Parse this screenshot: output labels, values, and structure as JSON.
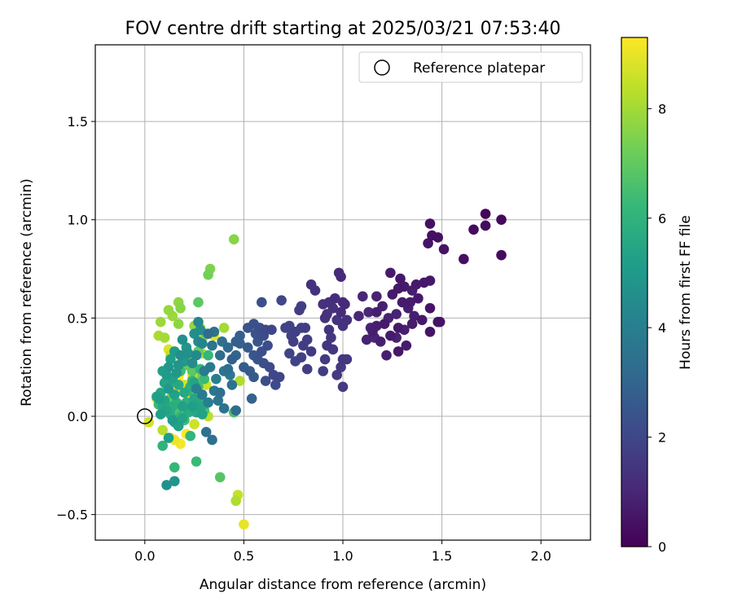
{
  "chart_data": {
    "type": "scatter",
    "title": "FOV centre drift starting at 2025/03/21 07:53:40",
    "xlabel": "Angular distance from reference (arcmin)",
    "ylabel": "Rotation from reference (arcmin)",
    "xlim": [
      -0.25,
      2.25
    ],
    "ylim": [
      -0.63,
      1.89
    ],
    "xticks": [
      0.0,
      0.5,
      1.0,
      1.5,
      2.0
    ],
    "xtick_labels": [
      "0.0",
      "0.5",
      "1.0",
      "1.5",
      "2.0"
    ],
    "yticks": [
      -0.5,
      0.0,
      0.5,
      1.0,
      1.5
    ],
    "ytick_labels": [
      "−0.5",
      "0.0",
      "0.5",
      "1.0",
      "1.5"
    ],
    "grid": true,
    "legend": {
      "placement": "top-right",
      "entries": [
        "Reference platepar"
      ]
    },
    "reference_point": {
      "x": 0.0,
      "y": 0.0,
      "name": "Reference platepar"
    },
    "colorbar": {
      "label": "Hours from first FF file",
      "range": [
        0,
        9.3
      ],
      "ticks": [
        0,
        2,
        4,
        6,
        8
      ],
      "tick_labels": [
        "0",
        "2",
        "4",
        "6",
        "8"
      ],
      "colormap": [
        "#440154",
        "#482878",
        "#3e4989",
        "#31688e",
        "#26828e",
        "#1f9e89",
        "#35b779",
        "#6ece58",
        "#b5de2b",
        "#fde725"
      ]
    },
    "points": [
      [
        1.72,
        1.03,
        0.1
      ],
      [
        1.8,
        1.0,
        0.2
      ],
      [
        1.72,
        0.97,
        0.3
      ],
      [
        1.66,
        0.95,
        0.3
      ],
      [
        1.44,
        0.98,
        0.4
      ],
      [
        1.45,
        0.92,
        0.4
      ],
      [
        1.48,
        0.91,
        0.4
      ],
      [
        1.43,
        0.88,
        0.5
      ],
      [
        1.51,
        0.85,
        0.5
      ],
      [
        1.61,
        0.8,
        0.4
      ],
      [
        1.8,
        0.82,
        0.3
      ],
      [
        1.24,
        0.73,
        0.7
      ],
      [
        1.29,
        0.7,
        0.6
      ],
      [
        1.41,
        0.68,
        0.6
      ],
      [
        1.44,
        0.69,
        0.6
      ],
      [
        1.37,
        0.67,
        0.7
      ],
      [
        1.31,
        0.66,
        0.7
      ],
      [
        1.28,
        0.65,
        0.6
      ],
      [
        1.35,
        0.64,
        0.8
      ],
      [
        1.25,
        0.62,
        0.7
      ],
      [
        1.38,
        0.6,
        0.6
      ],
      [
        1.44,
        0.55,
        0.5
      ],
      [
        1.33,
        0.55,
        0.8
      ],
      [
        1.36,
        0.51,
        0.8
      ],
      [
        1.4,
        0.49,
        0.6
      ],
      [
        1.48,
        0.48,
        0.5
      ],
      [
        1.49,
        0.48,
        0.5
      ],
      [
        1.35,
        0.47,
        0.7
      ],
      [
        1.31,
        0.44,
        0.8
      ],
      [
        1.28,
        0.45,
        0.6
      ],
      [
        1.24,
        0.41,
        0.7
      ],
      [
        1.27,
        0.4,
        0.9
      ],
      [
        1.19,
        0.38,
        0.8
      ],
      [
        1.32,
        0.36,
        0.7
      ],
      [
        1.28,
        0.33,
        0.6
      ],
      [
        1.22,
        0.31,
        0.8
      ],
      [
        1.44,
        0.43,
        0.5
      ],
      [
        1.21,
        0.47,
        0.7
      ],
      [
        1.17,
        0.46,
        0.8
      ],
      [
        1.23,
        0.5,
        0.9
      ],
      [
        1.2,
        0.56,
        0.8
      ],
      [
        1.27,
        0.52,
        0.9
      ],
      [
        1.3,
        0.58,
        0.7
      ],
      [
        1.34,
        0.58,
        0.7
      ],
      [
        1.17,
        0.61,
        0.9
      ],
      [
        1.1,
        0.61,
        1.0
      ],
      [
        1.13,
        0.53,
        1.0
      ],
      [
        1.08,
        0.51,
        1.0
      ],
      [
        1.17,
        0.53,
        0.8
      ],
      [
        1.15,
        0.43,
        0.8
      ],
      [
        1.12,
        0.39,
        0.9
      ],
      [
        1.16,
        0.4,
        1.0
      ],
      [
        1.14,
        0.45,
        0.9
      ],
      [
        0.98,
        0.73,
        1.1
      ],
      [
        0.99,
        0.71,
        1.1
      ],
      [
        0.84,
        0.67,
        1.3
      ],
      [
        0.86,
        0.64,
        1.3
      ],
      [
        0.96,
        0.6,
        1.2
      ],
      [
        1.0,
        0.58,
        1.2
      ],
      [
        1.01,
        0.57,
        1.1
      ],
      [
        0.93,
        0.58,
        1.3
      ],
      [
        0.9,
        0.57,
        1.3
      ],
      [
        0.95,
        0.55,
        1.3
      ],
      [
        0.99,
        0.53,
        1.2
      ],
      [
        0.92,
        0.52,
        1.3
      ],
      [
        0.91,
        0.5,
        1.3
      ],
      [
        0.97,
        0.49,
        1.4
      ],
      [
        1.0,
        0.46,
        1.4
      ],
      [
        1.02,
        0.49,
        1.3
      ],
      [
        0.93,
        0.44,
        1.4
      ],
      [
        0.94,
        0.4,
        1.5
      ],
      [
        0.92,
        0.36,
        1.4
      ],
      [
        0.95,
        0.34,
        1.5
      ],
      [
        1.0,
        0.29,
        1.5
      ],
      [
        1.02,
        0.29,
        1.5
      ],
      [
        0.99,
        0.25,
        1.6
      ],
      [
        0.97,
        0.21,
        1.6
      ],
      [
        1.0,
        0.15,
        1.6
      ],
      [
        0.9,
        0.23,
        1.7
      ],
      [
        0.91,
        0.29,
        1.6
      ],
      [
        0.84,
        0.33,
        1.6
      ],
      [
        0.8,
        0.36,
        1.7
      ],
      [
        0.82,
        0.39,
        1.7
      ],
      [
        0.79,
        0.45,
        1.8
      ],
      [
        0.81,
        0.45,
        1.7
      ],
      [
        0.76,
        0.43,
        1.8
      ],
      [
        0.74,
        0.41,
        1.8
      ],
      [
        0.73,
        0.46,
        1.9
      ],
      [
        0.71,
        0.45,
        1.9
      ],
      [
        0.75,
        0.38,
        1.8
      ],
      [
        0.79,
        0.3,
        1.8
      ],
      [
        0.76,
        0.28,
        1.9
      ],
      [
        0.73,
        0.32,
        1.9
      ],
      [
        0.82,
        0.24,
        1.7
      ],
      [
        0.78,
        0.54,
        1.7
      ],
      [
        0.79,
        0.56,
        1.8
      ],
      [
        0.69,
        0.59,
        2.0
      ],
      [
        0.59,
        0.58,
        2.3
      ],
      [
        0.58,
        0.45,
        2.3
      ],
      [
        0.61,
        0.44,
        2.1
      ],
      [
        0.64,
        0.44,
        2.0
      ],
      [
        0.55,
        0.47,
        2.3
      ],
      [
        0.52,
        0.45,
        2.4
      ],
      [
        0.56,
        0.42,
        2.4
      ],
      [
        0.6,
        0.41,
        2.2
      ],
      [
        0.57,
        0.38,
        2.5
      ],
      [
        0.62,
        0.36,
        2.2
      ],
      [
        0.59,
        0.33,
        2.3
      ],
      [
        0.55,
        0.31,
        2.5
      ],
      [
        0.57,
        0.29,
        2.4
      ],
      [
        0.6,
        0.27,
        2.3
      ],
      [
        0.63,
        0.25,
        2.1
      ],
      [
        0.65,
        0.21,
        2.0
      ],
      [
        0.61,
        0.18,
        2.2
      ],
      [
        0.68,
        0.2,
        2.0
      ],
      [
        0.66,
        0.16,
        2.1
      ],
      [
        0.53,
        0.23,
        2.6
      ],
      [
        0.5,
        0.25,
        2.7
      ],
      [
        0.55,
        0.2,
        2.6
      ],
      [
        0.52,
        0.35,
        2.6
      ],
      [
        0.48,
        0.41,
        2.8
      ],
      [
        0.46,
        0.38,
        2.8
      ],
      [
        0.46,
        0.31,
        3.0
      ],
      [
        0.44,
        0.29,
        2.8
      ],
      [
        0.42,
        0.35,
        3.1
      ],
      [
        0.48,
        0.37,
        2.9
      ],
      [
        0.54,
        0.09,
        2.9
      ],
      [
        0.32,
        0.42,
        3.3
      ],
      [
        0.35,
        0.43,
        3.5
      ],
      [
        0.38,
        0.31,
        3.3
      ],
      [
        0.34,
        0.36,
        3.6
      ],
      [
        0.39,
        0.38,
        3.4
      ],
      [
        0.42,
        0.24,
        3.4
      ],
      [
        0.4,
        0.23,
        3.6
      ],
      [
        0.43,
        0.21,
        3.8
      ],
      [
        0.44,
        0.16,
        3.5
      ],
      [
        0.46,
        0.03,
        3.3
      ],
      [
        0.38,
        0.12,
        3.4
      ],
      [
        0.35,
        0.13,
        3.7
      ],
      [
        0.37,
        0.08,
        3.6
      ],
      [
        0.4,
        0.04,
        3.5
      ],
      [
        0.36,
        0.19,
        4.0
      ],
      [
        0.33,
        0.25,
        3.8
      ],
      [
        0.3,
        0.23,
        3.9
      ],
      [
        0.31,
        -0.08,
        3.5
      ],
      [
        0.34,
        -0.12,
        3.4
      ],
      [
        0.32,
        0.07,
        4.0
      ],
      [
        0.29,
        0.11,
        3.9
      ],
      [
        0.26,
        0.14,
        4.1
      ],
      [
        0.27,
        0.48,
        4.3
      ],
      [
        0.28,
        0.44,
        4.5
      ],
      [
        0.25,
        0.42,
        4.6
      ],
      [
        0.27,
        0.38,
        4.4
      ],
      [
        0.29,
        0.37,
        4.2
      ],
      [
        0.26,
        0.31,
        4.4
      ],
      [
        0.22,
        0.32,
        4.7
      ],
      [
        0.24,
        0.27,
        4.5
      ],
      [
        0.19,
        0.39,
        4.6
      ],
      [
        0.21,
        0.35,
        4.9
      ],
      [
        0.18,
        0.31,
        4.6
      ],
      [
        0.2,
        0.28,
        5.0
      ],
      [
        0.15,
        0.33,
        5.1
      ],
      [
        0.17,
        0.26,
        4.8
      ],
      [
        0.13,
        0.29,
        5.2
      ],
      [
        0.12,
        0.25,
        4.9
      ],
      [
        0.16,
        0.22,
        5.0
      ],
      [
        0.14,
        0.19,
        5.3
      ],
      [
        0.11,
        0.21,
        5.1
      ],
      [
        0.09,
        0.23,
        5.2
      ],
      [
        0.1,
        0.17,
        5.4
      ],
      [
        0.12,
        0.14,
        5.0
      ],
      [
        0.15,
        0.11,
        5.3
      ],
      [
        0.08,
        0.12,
        5.5
      ],
      [
        0.07,
        0.09,
        5.2
      ],
      [
        0.1,
        0.08,
        5.4
      ],
      [
        0.06,
        0.1,
        5.3
      ],
      [
        0.09,
        0.05,
        5.6
      ],
      [
        0.11,
        0.03,
        5.4
      ],
      [
        0.13,
        0.01,
        5.7
      ],
      [
        0.08,
        0.01,
        5.2
      ],
      [
        0.14,
        -0.02,
        5.1
      ],
      [
        0.15,
        -0.03,
        5.5
      ],
      [
        0.17,
        -0.05,
        5.3
      ],
      [
        0.19,
        -0.01,
        5.4
      ],
      [
        0.22,
        0.02,
        5.7
      ],
      [
        0.24,
        0.05,
        5.2
      ],
      [
        0.21,
        0.07,
        5.9
      ],
      [
        0.25,
        0.09,
        5.5
      ],
      [
        0.2,
        0.12,
        5.6
      ],
      [
        0.23,
        0.15,
        5.8
      ],
      [
        0.25,
        0.17,
        5.4
      ],
      [
        0.17,
        0.16,
        5.6
      ],
      [
        0.14,
        0.05,
        5.8
      ],
      [
        0.16,
        0.07,
        5.9
      ],
      [
        0.19,
        0.05,
        5.3
      ],
      [
        0.12,
        -0.11,
        5.2
      ],
      [
        0.15,
        -0.33,
        4.8
      ],
      [
        0.11,
        -0.35,
        4.7
      ],
      [
        0.26,
        0.02,
        5.6
      ],
      [
        0.28,
        0.05,
        5.4
      ],
      [
        0.27,
        0.08,
        5.7
      ],
      [
        0.3,
        0.06,
        5.8
      ],
      [
        0.23,
        0.04,
        5.9
      ],
      [
        0.29,
        0.01,
        5.3
      ],
      [
        0.09,
        -0.15,
        6.0
      ],
      [
        0.15,
        -0.26,
        6.2
      ],
      [
        0.26,
        -0.23,
        6.3
      ],
      [
        0.23,
        -0.1,
        6.1
      ],
      [
        0.07,
        0.06,
        6.3
      ],
      [
        0.12,
        0.16,
        6.1
      ],
      [
        0.18,
        0.23,
        6.4
      ],
      [
        0.24,
        0.18,
        6.0
      ],
      [
        0.22,
        0.13,
        6.2
      ],
      [
        0.27,
        0.15,
        6.5
      ],
      [
        0.28,
        0.24,
        6.1
      ],
      [
        0.32,
        0.31,
        6.2
      ],
      [
        0.3,
        0.19,
        6.3
      ],
      [
        0.25,
        0.07,
        6.4
      ],
      [
        0.3,
        0.03,
        6.6
      ],
      [
        0.18,
        0.0,
        6.2
      ],
      [
        0.2,
        -0.02,
        6.4
      ],
      [
        0.45,
        0.02,
        6.6
      ],
      [
        0.38,
        -0.31,
        6.8
      ],
      [
        0.31,
        0.42,
        6.5
      ],
      [
        0.27,
        0.58,
        6.9
      ],
      [
        0.16,
        0.04,
        6.8
      ],
      [
        0.13,
        0.09,
        7.0
      ],
      [
        0.24,
        0.23,
        6.9
      ],
      [
        0.21,
        0.26,
        7.1
      ],
      [
        0.29,
        0.2,
        7.2
      ],
      [
        0.27,
        0.33,
        7.0
      ],
      [
        0.32,
        0.72,
        7.3
      ],
      [
        0.33,
        0.75,
        7.5
      ],
      [
        0.45,
        0.9,
        7.6
      ],
      [
        0.17,
        0.58,
        7.7
      ],
      [
        0.18,
        0.55,
        7.6
      ],
      [
        0.14,
        0.51,
        7.9
      ],
      [
        0.12,
        0.54,
        7.8
      ],
      [
        0.08,
        0.48,
        7.9
      ],
      [
        0.1,
        0.4,
        8.0
      ],
      [
        0.07,
        0.41,
        8.1
      ],
      [
        0.17,
        0.47,
        7.7
      ],
      [
        0.28,
        0.45,
        8.2
      ],
      [
        0.3,
        0.41,
        8.1
      ],
      [
        0.4,
        0.45,
        8.0
      ],
      [
        0.25,
        0.46,
        7.8
      ],
      [
        0.13,
        0.31,
        8.4
      ],
      [
        0.19,
        0.3,
        8.3
      ],
      [
        0.23,
        0.28,
        8.5
      ],
      [
        0.29,
        0.32,
        8.3
      ],
      [
        0.31,
        0.16,
        8.6
      ],
      [
        0.24,
        0.19,
        8.4
      ],
      [
        0.26,
        0.22,
        8.6
      ],
      [
        0.2,
        0.16,
        8.7
      ],
      [
        0.23,
        0.11,
        8.8
      ],
      [
        0.19,
        0.06,
        8.5
      ],
      [
        0.32,
        0.0,
        8.4
      ],
      [
        0.25,
        -0.04,
        8.6
      ],
      [
        0.06,
        0.09,
        8.9
      ],
      [
        0.08,
        0.07,
        8.8
      ],
      [
        0.11,
        0.05,
        9.0
      ],
      [
        0.14,
        0.11,
        8.9
      ],
      [
        0.12,
        0.34,
        8.8
      ],
      [
        0.09,
        -0.07,
        8.3
      ],
      [
        0.02,
        -0.03,
        8.7
      ],
      [
        0.48,
        0.18,
        8.2
      ],
      [
        0.47,
        -0.4,
        8.5
      ],
      [
        0.46,
        -0.43,
        8.2
      ],
      [
        0.5,
        -0.55,
        9.0
      ],
      [
        0.35,
        0.41,
        8.9
      ],
      [
        0.17,
        0.2,
        9.2
      ],
      [
        0.15,
        -0.12,
        9.1
      ],
      [
        0.18,
        -0.14,
        9.2
      ],
      [
        0.21,
        -0.09,
        9.3
      ],
      [
        0.13,
        -0.11,
        9.0
      ],
      [
        0.16,
        0.32,
        9.1
      ],
      [
        0.22,
        0.05,
        9.2
      ],
      [
        0.1,
        0.08,
        9.3
      ],
      [
        0.17,
        0.13,
        9.2
      ],
      [
        0.24,
        0.21,
        9.1
      ]
    ]
  }
}
